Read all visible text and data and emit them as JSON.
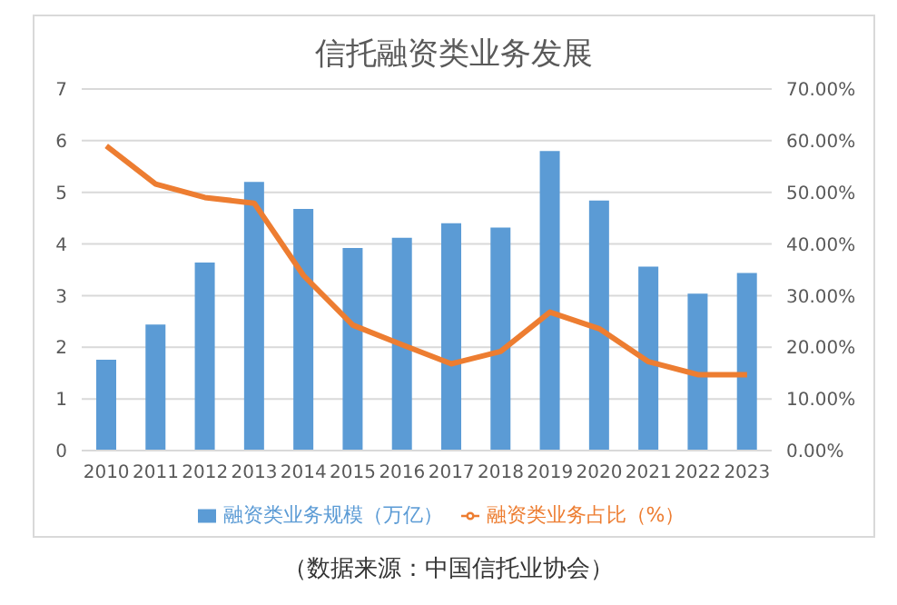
{
  "chart_data": {
    "type": "bar",
    "title": "信托融资类业务发展",
    "categories": [
      "2010",
      "2011",
      "2012",
      "2013",
      "2014",
      "2015",
      "2016",
      "2017",
      "2018",
      "2019",
      "2020",
      "2021",
      "2022",
      "2023"
    ],
    "series": [
      {
        "name": "融资类业务规模（万亿）",
        "color": "#5b9bd5",
        "values": [
          1.76,
          2.44,
          3.64,
          5.2,
          4.68,
          3.92,
          4.12,
          4.4,
          4.32,
          5.8,
          4.84,
          3.56,
          3.04,
          3.44
        ]
      },
      {
        "name": "融资类业务占比（%）",
        "type": "line",
        "axis": "y2",
        "color": "#ed7d31",
        "values": [
          59,
          51.6,
          49,
          47.9,
          33.9,
          24.3,
          20.5,
          16.8,
          19.2,
          26.8,
          23.6,
          17.2,
          14.7,
          14.7
        ]
      }
    ],
    "ylim": [
      0,
      7
    ],
    "yticks": [
      0,
      1,
      2,
      3,
      4,
      5,
      6,
      7
    ],
    "y2lim": [
      0,
      70
    ],
    "y2ticks": [
      {
        "value": 0,
        "label": "0.00%"
      },
      {
        "value": 10,
        "label": "10.00%"
      },
      {
        "value": 20,
        "label": "20.00%"
      },
      {
        "value": 30,
        "label": "30.00%"
      },
      {
        "value": 40,
        "label": "40.00%"
      },
      {
        "value": 50,
        "label": "50.00%"
      },
      {
        "value": 60,
        "label": "60.00%"
      },
      {
        "value": 70,
        "label": "70.00%"
      }
    ],
    "grid": "y",
    "legend": "bottom",
    "marker": "none",
    "line_style": "solid",
    "annotations": [
      "（数据来源：中国信托业协会）"
    ]
  }
}
